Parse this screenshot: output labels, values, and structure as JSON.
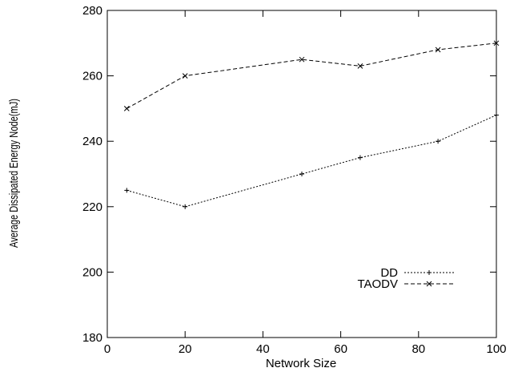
{
  "chart_data": {
    "type": "line",
    "xlabel": "Network Size",
    "ylabel": "Average Dissipated Energy Node(mJ)",
    "xlim": [
      0,
      100
    ],
    "ylim": [
      180,
      280
    ],
    "xticks": [
      0,
      20,
      40,
      60,
      80,
      100
    ],
    "yticks": [
      180,
      200,
      220,
      240,
      260,
      280
    ],
    "grid": false,
    "legend_position": "bottom-right",
    "series": [
      {
        "name": "DD",
        "marker": "plus",
        "line_style": "dotted",
        "x": [
          5,
          20,
          50,
          65,
          85,
          100
        ],
        "y": [
          225,
          220,
          230,
          235,
          240,
          248
        ]
      },
      {
        "name": "TAODV",
        "marker": "cross",
        "line_style": "dashed",
        "x": [
          5,
          20,
          50,
          65,
          85,
          100
        ],
        "y": [
          250,
          260,
          265,
          263,
          268,
          270
        ]
      }
    ]
  },
  "colors": {
    "axis": "#000000",
    "series": "#000000",
    "background": "#ffffff"
  }
}
